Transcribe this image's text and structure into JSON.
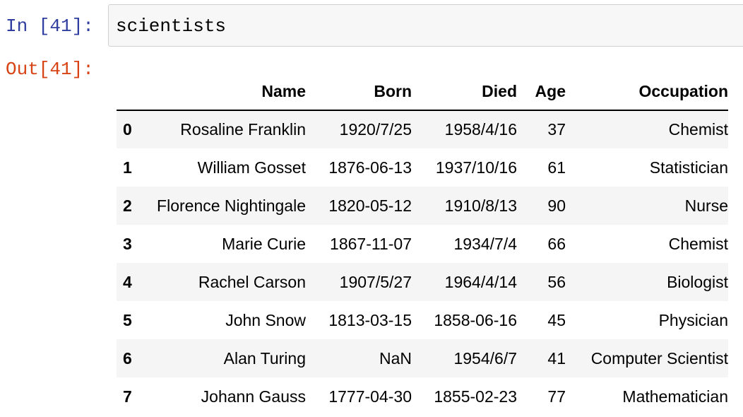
{
  "input": {
    "prompt": "In [41]:",
    "code": "scientists"
  },
  "output": {
    "prompt": "Out[41]:"
  },
  "dataframe": {
    "columns": [
      "",
      "Name",
      "Born",
      "Died",
      "Age",
      "Occupation"
    ],
    "rows": [
      [
        "0",
        "Rosaline Franklin",
        "1920/7/25",
        "1958/4/16",
        "37",
        "Chemist"
      ],
      [
        "1",
        "William Gosset",
        "1876-06-13",
        "1937/10/16",
        "61",
        "Statistician"
      ],
      [
        "2",
        "Florence Nightingale",
        "1820-05-12",
        "1910/8/13",
        "90",
        "Nurse"
      ],
      [
        "3",
        "Marie Curie",
        "1867-11-07",
        "1934/7/4",
        "66",
        "Chemist"
      ],
      [
        "4",
        "Rachel Carson",
        "1907/5/27",
        "1964/4/14",
        "56",
        "Biologist"
      ],
      [
        "5",
        "John Snow",
        "1813-03-15",
        "1858-06-16",
        "45",
        "Physician"
      ],
      [
        "6",
        "Alan Turing",
        "NaN",
        "1954/6/7",
        "41",
        "Computer Scientist"
      ],
      [
        "7",
        "Johann Gauss",
        "1777-04-30",
        "1855-02-23",
        "77",
        "Mathematician"
      ]
    ]
  },
  "colors": {
    "input_prompt": "#303f9f",
    "output_prompt": "#d84315",
    "cell_background": "#f7f7f7",
    "stripe": "#f5f5f5"
  }
}
